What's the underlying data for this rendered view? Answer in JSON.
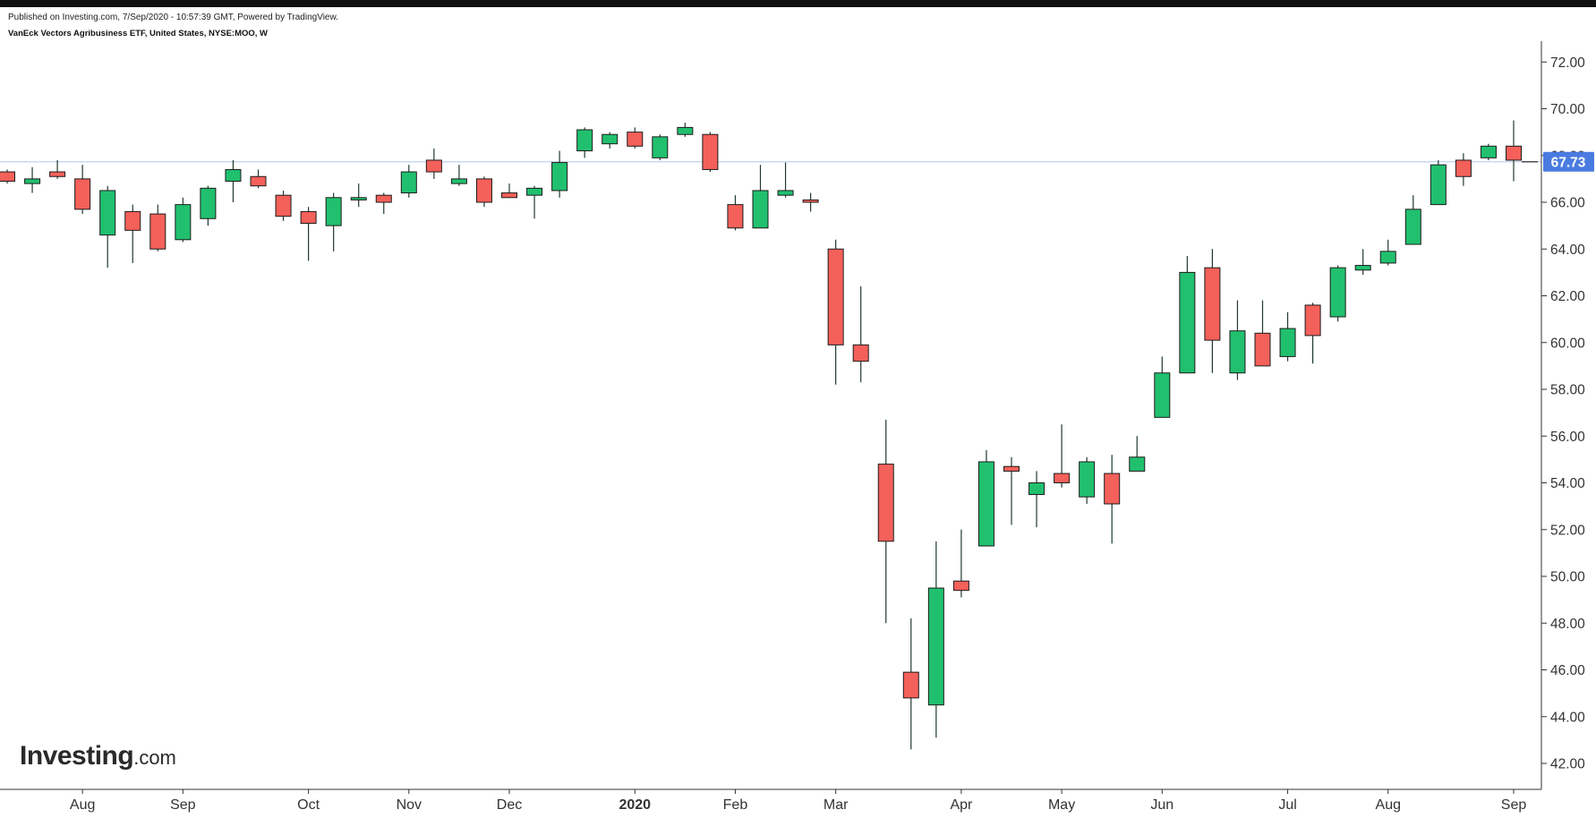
{
  "header": {
    "published": "Published on Investing.com, 7/Sep/2020 - 10:57:39 GMT, Powered by TradingView.",
    "title": "VanEck Vectors Agribusiness ETF, United States, NYSE:MOO, W"
  },
  "logo": {
    "brand": "Investing",
    "suffix": ".com"
  },
  "chart_data": {
    "type": "candlestick",
    "interval": "W",
    "ylim": [
      41.2,
      72.8
    ],
    "yticks": [
      42,
      44,
      46,
      48,
      50,
      52,
      54,
      56,
      58,
      60,
      62,
      64,
      66,
      68,
      70,
      72
    ],
    "ytick_labels": [
      "42.00",
      "44.00",
      "46.00",
      "48.00",
      "50.00",
      "52.00",
      "54.00",
      "56.00",
      "58.00",
      "60.00",
      "62.00",
      "64.00",
      "66.00",
      "68.00",
      "70.00",
      "72.00"
    ],
    "xtick_labels": [
      {
        "label": "Jul",
        "index": -3.8
      },
      {
        "label": "Aug",
        "index": 3.0
      },
      {
        "label": "Sep",
        "index": 7.0
      },
      {
        "label": "Oct",
        "index": 12.0
      },
      {
        "label": "Nov",
        "index": 16.0
      },
      {
        "label": "Dec",
        "index": 20.0
      },
      {
        "label": "2020",
        "index": 25.0,
        "bold": true
      },
      {
        "label": "Feb",
        "index": 29.0
      },
      {
        "label": "Mar",
        "index": 33.0
      },
      {
        "label": "Apr",
        "index": 38.0
      },
      {
        "label": "May",
        "index": 42.0
      },
      {
        "label": "Jun",
        "index": 46.0
      },
      {
        "label": "Jul",
        "index": 51.0
      },
      {
        "label": "Aug",
        "index": 55.0
      },
      {
        "label": "Sep",
        "index": 60.0
      }
    ],
    "last_price": 67.73,
    "last_price_label": "67.73",
    "grid": false,
    "colors": {
      "up": "#21c06e",
      "down": "#f4605a",
      "wick": "#1f3a2c",
      "last_price": "#4a7be0",
      "price_line": "#b9cbf2",
      "axis": "#333333"
    },
    "candles": [
      {
        "o": 67.3,
        "h": 67.4,
        "l": 66.8,
        "c": 66.9
      },
      {
        "o": 66.8,
        "h": 67.5,
        "l": 66.4,
        "c": 67.0
      },
      {
        "o": 67.3,
        "h": 67.8,
        "l": 67.0,
        "c": 67.1
      },
      {
        "o": 67.0,
        "h": 67.6,
        "l": 65.5,
        "c": 65.7
      },
      {
        "o": 64.6,
        "h": 66.7,
        "l": 63.2,
        "c": 66.5
      },
      {
        "o": 65.6,
        "h": 65.9,
        "l": 63.4,
        "c": 64.8
      },
      {
        "o": 65.5,
        "h": 65.9,
        "l": 63.9,
        "c": 64.0
      },
      {
        "o": 64.4,
        "h": 66.2,
        "l": 64.3,
        "c": 65.9
      },
      {
        "o": 65.3,
        "h": 66.7,
        "l": 65.0,
        "c": 66.6
      },
      {
        "o": 66.9,
        "h": 67.8,
        "l": 66.0,
        "c": 67.4
      },
      {
        "o": 67.1,
        "h": 67.4,
        "l": 66.6,
        "c": 66.7
      },
      {
        "o": 66.3,
        "h": 66.5,
        "l": 65.2,
        "c": 65.4
      },
      {
        "o": 65.6,
        "h": 65.8,
        "l": 63.5,
        "c": 65.1
      },
      {
        "o": 65.0,
        "h": 66.4,
        "l": 63.9,
        "c": 66.2
      },
      {
        "o": 66.1,
        "h": 66.8,
        "l": 65.8,
        "c": 66.2
      },
      {
        "o": 66.3,
        "h": 66.4,
        "l": 65.5,
        "c": 66.0
      },
      {
        "o": 66.4,
        "h": 67.6,
        "l": 66.2,
        "c": 67.3
      },
      {
        "o": 67.8,
        "h": 68.3,
        "l": 67.0,
        "c": 67.3
      },
      {
        "o": 66.8,
        "h": 67.6,
        "l": 66.7,
        "c": 67.0
      },
      {
        "o": 67.0,
        "h": 67.1,
        "l": 65.8,
        "c": 66.0
      },
      {
        "o": 66.4,
        "h": 66.8,
        "l": 66.2,
        "c": 66.2
      },
      {
        "o": 66.3,
        "h": 66.7,
        "l": 65.3,
        "c": 66.6
      },
      {
        "o": 66.5,
        "h": 68.2,
        "l": 66.2,
        "c": 67.7
      },
      {
        "o": 68.2,
        "h": 69.2,
        "l": 67.9,
        "c": 69.1
      },
      {
        "o": 68.5,
        "h": 69.0,
        "l": 68.3,
        "c": 68.9
      },
      {
        "o": 69.0,
        "h": 69.2,
        "l": 68.3,
        "c": 68.4
      },
      {
        "o": 67.9,
        "h": 68.9,
        "l": 67.8,
        "c": 68.8
      },
      {
        "o": 68.9,
        "h": 69.4,
        "l": 68.8,
        "c": 69.2
      },
      {
        "o": 68.9,
        "h": 69.0,
        "l": 67.3,
        "c": 67.4
      },
      {
        "o": 65.9,
        "h": 66.3,
        "l": 64.8,
        "c": 64.9
      },
      {
        "o": 64.9,
        "h": 67.6,
        "l": 64.9,
        "c": 66.5
      },
      {
        "o": 66.3,
        "h": 67.7,
        "l": 66.2,
        "c": 66.5
      },
      {
        "o": 66.1,
        "h": 66.4,
        "l": 65.6,
        "c": 66.0
      },
      {
        "o": 64.0,
        "h": 64.4,
        "l": 58.2,
        "c": 59.9
      },
      {
        "o": 59.9,
        "h": 62.4,
        "l": 58.3,
        "c": 59.2
      },
      {
        "o": 54.8,
        "h": 56.7,
        "l": 48.0,
        "c": 51.5
      },
      {
        "o": 45.9,
        "h": 48.2,
        "l": 42.6,
        "c": 44.8
      },
      {
        "o": 44.5,
        "h": 51.5,
        "l": 43.1,
        "c": 49.5
      },
      {
        "o": 49.8,
        "h": 52.0,
        "l": 49.1,
        "c": 49.4
      },
      {
        "o": 51.3,
        "h": 55.4,
        "l": 51.3,
        "c": 54.9
      },
      {
        "o": 54.7,
        "h": 55.1,
        "l": 52.2,
        "c": 54.5
      },
      {
        "o": 53.5,
        "h": 54.5,
        "l": 52.1,
        "c": 54.0
      },
      {
        "o": 54.4,
        "h": 56.5,
        "l": 53.8,
        "c": 54.0
      },
      {
        "o": 53.4,
        "h": 55.1,
        "l": 53.1,
        "c": 54.9
      },
      {
        "o": 54.4,
        "h": 55.2,
        "l": 51.4,
        "c": 53.1
      },
      {
        "o": 54.5,
        "h": 56.0,
        "l": 54.5,
        "c": 55.1
      },
      {
        "o": 56.8,
        "h": 59.4,
        "l": 56.8,
        "c": 58.7
      },
      {
        "o": 58.7,
        "h": 63.7,
        "l": 58.7,
        "c": 63.0
      },
      {
        "o": 63.2,
        "h": 64.0,
        "l": 58.7,
        "c": 60.1
      },
      {
        "o": 58.7,
        "h": 61.8,
        "l": 58.4,
        "c": 60.5
      },
      {
        "o": 60.4,
        "h": 61.8,
        "l": 59.0,
        "c": 59.0
      },
      {
        "o": 59.4,
        "h": 61.3,
        "l": 59.2,
        "c": 60.6
      },
      {
        "o": 61.6,
        "h": 61.7,
        "l": 59.1,
        "c": 60.3
      },
      {
        "o": 61.1,
        "h": 63.3,
        "l": 60.9,
        "c": 63.2
      },
      {
        "o": 63.1,
        "h": 64.0,
        "l": 62.9,
        "c": 63.3
      },
      {
        "o": 63.4,
        "h": 64.4,
        "l": 63.3,
        "c": 63.9
      },
      {
        "o": 64.2,
        "h": 66.3,
        "l": 64.2,
        "c": 65.7
      },
      {
        "o": 65.9,
        "h": 67.8,
        "l": 65.9,
        "c": 67.6
      },
      {
        "o": 67.8,
        "h": 68.1,
        "l": 66.7,
        "c": 67.1
      },
      {
        "o": 67.9,
        "h": 68.5,
        "l": 67.8,
        "c": 68.4
      },
      {
        "o": 68.4,
        "h": 69.5,
        "l": 66.9,
        "c": 67.8
      }
    ]
  }
}
